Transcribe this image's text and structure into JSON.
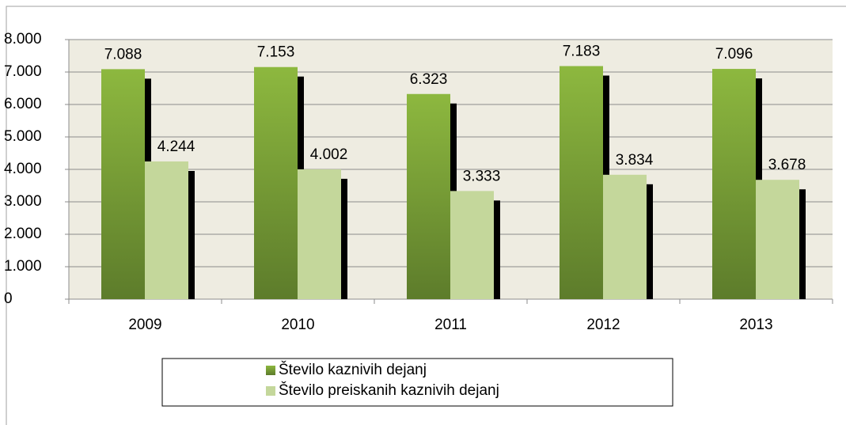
{
  "chart_data": {
    "type": "bar",
    "categories": [
      "2009",
      "2010",
      "2011",
      "2012",
      "2013"
    ],
    "series": [
      {
        "name": "Število kaznivih dejanj",
        "color": "#8ab43e",
        "values": [
          7088,
          7153,
          6323,
          7183,
          7096
        ],
        "value_labels": [
          "7.088",
          "7.153",
          "6.323",
          "7.183",
          "7.096"
        ]
      },
      {
        "name": "Število preiskanih kaznivih dejanj",
        "color": "#c4d79b",
        "values": [
          4244,
          4002,
          3333,
          3834,
          3678
        ],
        "value_labels": [
          "4.244",
          "4.002",
          "3.333",
          "3.834",
          "3.678"
        ]
      }
    ],
    "ylim": [
      0,
      8000
    ],
    "yticks": [
      0,
      {
        "value": 1000,
        "label": "1.000"
      },
      {
        "value": 2000,
        "label": "2.000"
      },
      {
        "value": 3000,
        "label": "3.000"
      },
      {
        "value": 4000,
        "label": "4.000"
      },
      {
        "value": 5000,
        "label": "5.000"
      },
      {
        "value": 6000,
        "label": "6.000"
      },
      {
        "value": 7000,
        "label": "7.000"
      },
      {
        "value": 8000,
        "label": "8.000"
      }
    ],
    "grid": true
  }
}
